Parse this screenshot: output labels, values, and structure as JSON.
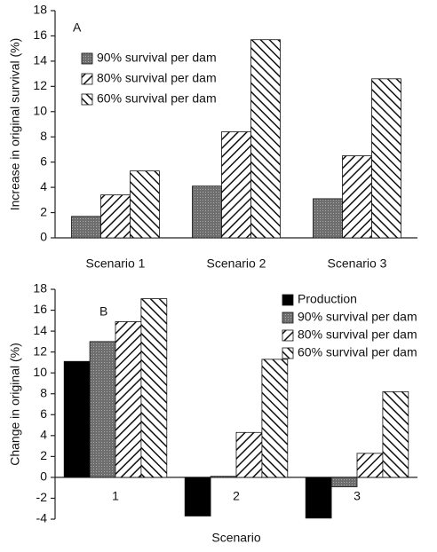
{
  "chart_data": [
    {
      "type": "bar",
      "panel_label": "A",
      "y_label": "Increase in original survival (%)",
      "categories": [
        "Scenario 1",
        "Scenario 2",
        "Scenario 3"
      ],
      "series": [
        {
          "name": "90% survival per dam",
          "color": "#6e6e6e",
          "hatch": "dots",
          "values": [
            1.7,
            4.1,
            3.1
          ]
        },
        {
          "name": "80% survival per dam",
          "color": "#222222",
          "hatch": "forward",
          "values": [
            3.4,
            8.4,
            6.5
          ]
        },
        {
          "name": "60% survival per dam",
          "color": "#222222",
          "hatch": "backward",
          "values": [
            5.3,
            15.7,
            12.6
          ]
        }
      ],
      "ylim": [
        0,
        18
      ],
      "yticks": [
        0,
        2,
        4,
        6,
        8,
        10,
        12,
        14,
        16,
        18
      ],
      "grid": false,
      "legend": "upper left"
    },
    {
      "type": "bar",
      "panel_label": "B",
      "y_label": "Change in original (%)",
      "x_label": "Scenario",
      "categories": [
        "1",
        "2",
        "3"
      ],
      "series": [
        {
          "name": "Production",
          "color": "#000000",
          "hatch": "solid",
          "values": [
            11.1,
            -3.7,
            -3.9
          ]
        },
        {
          "name": "90% survival per dam",
          "color": "#6e6e6e",
          "hatch": "dots",
          "values": [
            13.0,
            0.1,
            -0.9
          ]
        },
        {
          "name": "80% survival per dam",
          "color": "#222222",
          "hatch": "forward",
          "values": [
            14.9,
            4.3,
            2.3
          ]
        },
        {
          "name": "60% survival per dam",
          "color": "#222222",
          "hatch": "backward",
          "values": [
            17.1,
            11.3,
            8.2
          ]
        }
      ],
      "ylim": [
        -4,
        18
      ],
      "yticks": [
        -4,
        -2,
        0,
        2,
        4,
        6,
        8,
        10,
        12,
        14,
        16,
        18
      ],
      "grid": false,
      "legend": "upper right"
    }
  ]
}
